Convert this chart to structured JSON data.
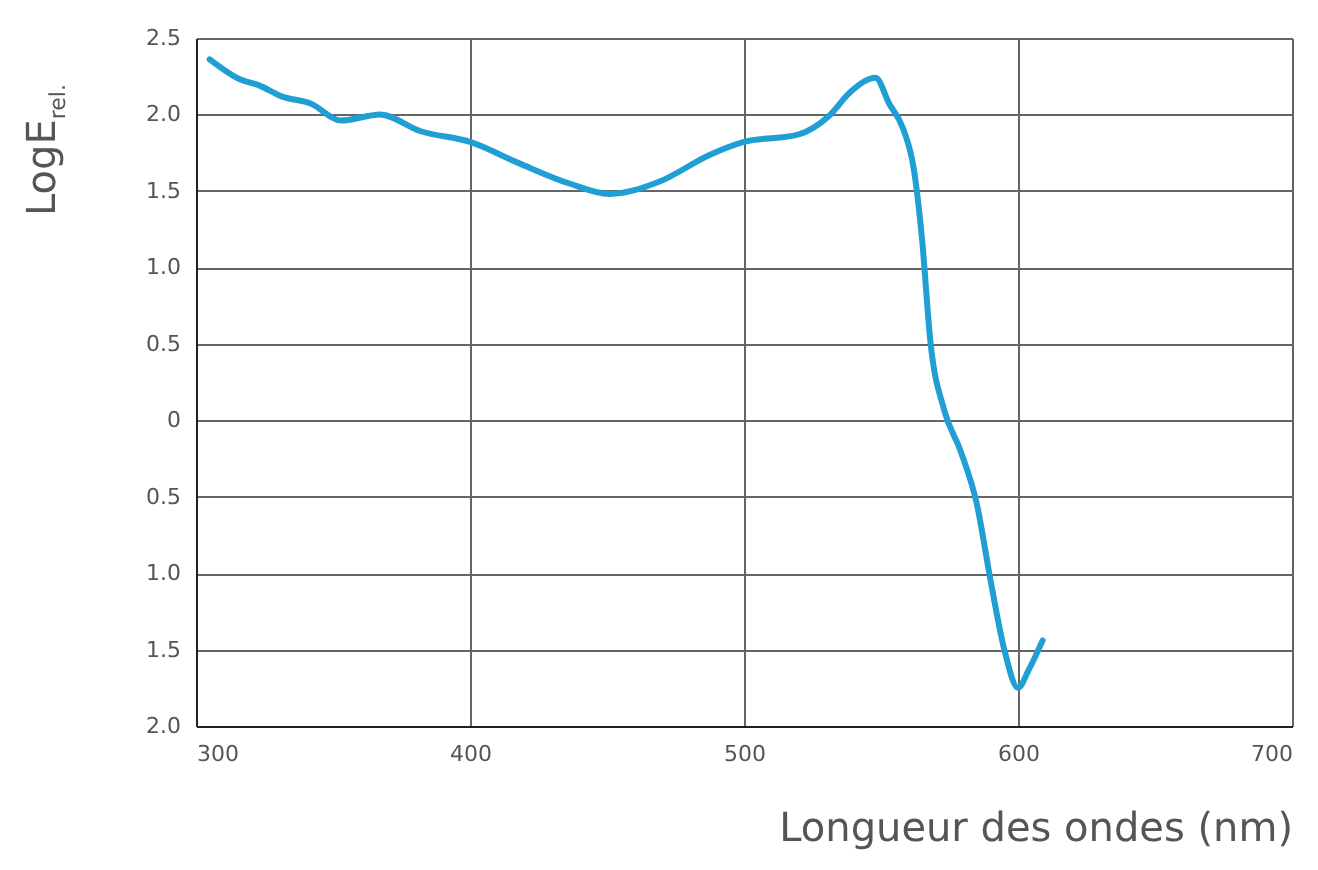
{
  "chart_data": {
    "type": "line",
    "xlabel": "Longueur des ondes (nm)",
    "ylabel": "LogE$_{rel.}$",
    "x": [
      305,
      316,
      323,
      331,
      342,
      353,
      363,
      367,
      382,
      400,
      418,
      436,
      451,
      469,
      488,
      500,
      520,
      531,
      539,
      548,
      553,
      558,
      562,
      565,
      568,
      573,
      579,
      585,
      590,
      595,
      600,
      604,
      609
    ],
    "series": [
      {
        "color": "#1f9fd4",
        "values": [
          2.36,
          2.23,
          2.19,
          2.12,
          2.07,
          1.96,
          1.99,
          2.0,
          1.89,
          1.82,
          1.68,
          1.55,
          1.48,
          1.56,
          1.74,
          1.82,
          1.87,
          1.99,
          2.15,
          2.24,
          2.07,
          1.91,
          1.64,
          1.18,
          0.52,
          0.07,
          -0.2,
          -0.55,
          -1.05,
          -1.5,
          -1.75,
          -1.63,
          -1.44
        ]
      }
    ],
    "xlim": [
      300,
      700
    ],
    "xticks": [
      300,
      400,
      500,
      600,
      700
    ],
    "ylim": [
      -2.0,
      2.5
    ],
    "yticks": [
      {
        "value": 2.5,
        "label": "2.5"
      },
      {
        "value": 2.0,
        "label": "2.0"
      },
      {
        "value": 1.5,
        "label": "1.5"
      },
      {
        "value": 1.0,
        "label": "1.0"
      },
      {
        "value": 0.5,
        "label": "0.5"
      },
      {
        "value": 0,
        "label": "0"
      },
      {
        "value": -0.5,
        "label": "0.5"
      },
      {
        "value": -1.0,
        "label": "1.0"
      },
      {
        "value": -1.5,
        "label": "1.5"
      },
      {
        "value": -2.0,
        "label": "2.0"
      }
    ],
    "grid": true,
    "marker": "none",
    "line_style": "solid"
  }
}
